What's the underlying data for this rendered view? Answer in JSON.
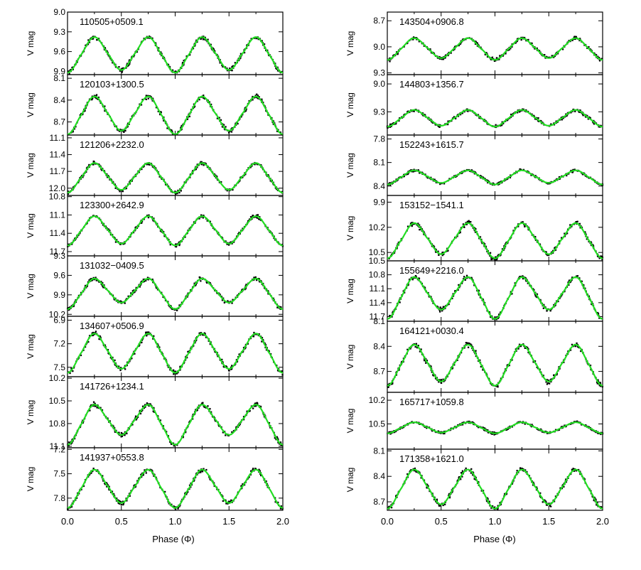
{
  "figure": {
    "ylabel": "V mag",
    "xlabel": "Phase (Φ)",
    "xticks": [
      "0.0",
      "0.5",
      "1.0",
      "1.5",
      "2.0"
    ],
    "colors": {
      "points": "#000000",
      "fit": "#22dd22",
      "axes": "#000000"
    }
  },
  "chart_data": [
    {
      "type": "scatter",
      "column": "left",
      "title": "110505+0509.1",
      "yticks": [
        "9.0",
        "9.3",
        "9.6",
        "9.9"
      ],
      "ylim": [
        9.0,
        9.95
      ],
      "max_mag": 9.38,
      "min1_mag": 9.92,
      "min2_mag": 9.88
    },
    {
      "type": "scatter",
      "column": "left",
      "title": "120103+1300.5",
      "yticks": [
        "8.1",
        "8.4",
        "8.7"
      ],
      "ylim": [
        8.05,
        8.88
      ],
      "max_mag": 8.35,
      "min1_mag": 8.87,
      "min2_mag": 8.82
    },
    {
      "type": "scatter",
      "column": "left",
      "title": "121206+2232.0",
      "yticks": [
        "11.1",
        "11.4",
        "11.7",
        "12.0"
      ],
      "ylim": [
        11.05,
        12.13
      ],
      "max_mag": 11.55,
      "min1_mag": 12.08,
      "min2_mag": 12.03
    },
    {
      "type": "scatter",
      "column": "left",
      "title": "123300+2642.9",
      "yticks": [
        "10.8",
        "11.1",
        "11.4",
        "11.7"
      ],
      "ylim": [
        10.78,
        11.77
      ],
      "max_mag": 11.12,
      "min1_mag": 11.6,
      "min2_mag": 11.57
    },
    {
      "type": "scatter",
      "column": "left",
      "title": "131032−0409.5",
      "yticks": [
        "9.3",
        "9.6",
        "9.9",
        "10.2"
      ],
      "ylim": [
        9.3,
        10.23
      ],
      "max_mag": 9.65,
      "min1_mag": 10.12,
      "min2_mag": 10.02
    },
    {
      "type": "scatter",
      "column": "left",
      "title": "134607+0506.9",
      "yticks": [
        "6.9",
        "7.2",
        "7.5"
      ],
      "ylim": [
        6.85,
        7.62
      ],
      "max_mag": 7.07,
      "min1_mag": 7.57,
      "min2_mag": 7.52
    },
    {
      "type": "scatter",
      "column": "left",
      "title": "141726+1234.1",
      "yticks": [
        "10.2",
        "10.5",
        "10.8",
        "11.1"
      ],
      "ylim": [
        10.18,
        11.12
      ],
      "max_mag": 10.55,
      "min1_mag": 11.08,
      "min2_mag": 10.95
    },
    {
      "type": "scatter",
      "column": "left",
      "title": "141937+0553.8",
      "yticks": [
        "7.2",
        "7.5",
        "7.8"
      ],
      "ylim": [
        7.18,
        7.95
      ],
      "max_mag": 7.45,
      "min1_mag": 7.92,
      "min2_mag": 7.86
    },
    {
      "type": "scatter",
      "column": "right",
      "title": "143504+0906.8",
      "yticks": [
        "8.7",
        "9.0",
        "9.3"
      ],
      "ylim": [
        8.6,
        9.32
      ],
      "max_mag": 8.9,
      "min1_mag": 9.15,
      "min2_mag": 9.13
    },
    {
      "type": "scatter",
      "column": "right",
      "title": "144803+1356.7",
      "yticks": [
        "9.0",
        "9.3"
      ],
      "ylim": [
        8.9,
        9.55
      ],
      "max_mag": 9.28,
      "min1_mag": 9.46,
      "min2_mag": 9.45
    },
    {
      "type": "scatter",
      "column": "right",
      "title": "152243+1615.7",
      "yticks": [
        "7.8",
        "8.1",
        "8.4"
      ],
      "ylim": [
        7.75,
        8.52
      ],
      "max_mag": 8.2,
      "min1_mag": 8.38,
      "min2_mag": 8.36
    },
    {
      "type": "scatter",
      "column": "right",
      "title": "153152−1541.1",
      "yticks": [
        "9.9",
        "10.2",
        "10.5"
      ],
      "ylim": [
        9.82,
        10.6
      ],
      "max_mag": 10.15,
      "min1_mag": 10.57,
      "min2_mag": 10.52
    },
    {
      "type": "scatter",
      "column": "right",
      "title": "155649+2216.0",
      "yticks": [
        "10.5",
        "10.8",
        "11.1",
        "11.4",
        "11.7"
      ],
      "ylim": [
        10.5,
        11.8
      ],
      "max_mag": 10.85,
      "min1_mag": 11.75,
      "min2_mag": 11.55
    },
    {
      "type": "scatter",
      "column": "right",
      "title": "164121+0030.4",
      "yticks": [
        "8.1",
        "8.4",
        "8.7"
      ],
      "ylim": [
        8.1,
        8.95
      ],
      "max_mag": 8.38,
      "min1_mag": 8.87,
      "min2_mag": 8.82
    },
    {
      "type": "scatter",
      "column": "right",
      "title": "165717+1059.8",
      "yticks": [
        "10.2",
        "10.5"
      ],
      "ylim": [
        10.1,
        10.82
      ],
      "max_mag": 10.48,
      "min1_mag": 10.62,
      "min2_mag": 10.61
    },
    {
      "type": "scatter",
      "column": "right",
      "title": "171358+1621.0",
      "yticks": [
        "8.1",
        "8.4",
        "8.7"
      ],
      "ylim": [
        8.08,
        8.8
      ],
      "max_mag": 8.32,
      "min1_mag": 8.78,
      "min2_mag": 8.73
    }
  ]
}
